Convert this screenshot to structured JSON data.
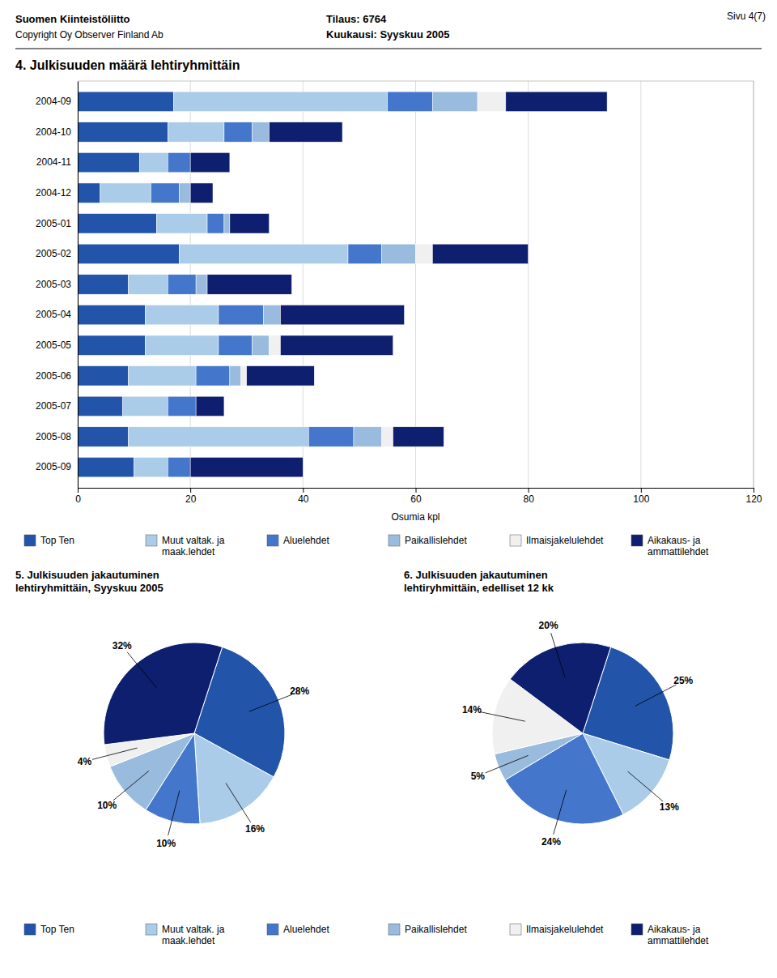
{
  "header": [
    "Suomen Kiinteistöliitto",
    "Copyright Oy Observer Finland Ab",
    "Tilaus:  6764",
    "Kuukausi: Syyskuu 2005",
    "Sivu 4(7)"
  ],
  "chart_data": [
    {
      "type": "bar",
      "orientation": "horizontal",
      "stacked": true,
      "title": "4. Julkisuuden määrä lehtiryhmittäin",
      "xlabel": "Osumia kpl",
      "categories": [
        "2004-09",
        "2004-10",
        "2004-11",
        "2004-12",
        "2005-01",
        "2005-02",
        "2005-03",
        "2005-04",
        "2005-05",
        "2005-06",
        "2005-07",
        "2005-08",
        "2005-09"
      ],
      "series": [
        {
          "name": "Top Ten",
          "color": "#2255aa",
          "values": [
            17,
            16,
            11,
            4,
            14,
            18,
            9,
            12,
            12,
            9,
            8,
            9,
            10
          ]
        },
        {
          "name": "Muut valtak. ja\nmaak.lehdet",
          "color": "#aacce8",
          "values": [
            38,
            10,
            5,
            9,
            9,
            30,
            7,
            13,
            13,
            12,
            8,
            32,
            6
          ]
        },
        {
          "name": "Aluelehdet",
          "color": "#4477cc",
          "values": [
            8,
            5,
            4,
            5,
            3,
            6,
            5,
            8,
            6,
            6,
            5,
            8,
            4
          ]
        },
        {
          "name": "Paikallislehdet",
          "color": "#99bbdd",
          "values": [
            8,
            3,
            0,
            2,
            1,
            6,
            2,
            3,
            3,
            2,
            0,
            5,
            0
          ]
        },
        {
          "name": "Ilmaisjakelulehdet",
          "color": "#f0f0f0",
          "values": [
            5,
            0,
            0,
            0,
            0,
            3,
            0,
            0,
            2,
            1,
            0,
            2,
            0
          ]
        },
        {
          "name": "Aikakaus- ja\nammattilehdet",
          "color": "#0d1f6e",
          "values": [
            18,
            13,
            7,
            4,
            7,
            17,
            15,
            22,
            20,
            12,
            5,
            9,
            20
          ]
        }
      ],
      "xlim": [
        0,
        120
      ],
      "xticks": [
        0,
        20,
        40,
        60,
        80,
        100,
        120
      ],
      "grid": true,
      "legend": "bottom"
    },
    {
      "type": "pie",
      "title": "5. Julkisuuden jakautuminen\nlehtiryhmittäin, Syyskuu 2005",
      "categories": [
        "Top Ten",
        "Muut valtak. ja\nmaak.lehdet",
        "Aluelehdet",
        "Paikallislehdet",
        "Ilmaisjakelulehdet",
        "Aikakaus- ja\nammattilehdet"
      ],
      "values": [
        28,
        16,
        10,
        10,
        4,
        32
      ],
      "value_labels": [
        "28%",
        "16%",
        "10%",
        "10%",
        "4%",
        "32%"
      ],
      "colors": [
        "#2255aa",
        "#aacce8",
        "#4477cc",
        "#99bbdd",
        "#f0f0f0",
        "#0d1f6e"
      ],
      "data_labels": true,
      "legend": "bottom"
    },
    {
      "type": "pie",
      "title": "6. Julkisuuden jakautuminen\nlehtiryhmittäin, edelliset 12 kk",
      "values": [
        25,
        13,
        24,
        5,
        14,
        20
      ],
      "value_labels": [
        "25%",
        "13%",
        "24%",
        "5%",
        "14%",
        "20%"
      ],
      "colors": [
        "#2255aa",
        "#aacce8",
        "#4477cc",
        "#99bbdd",
        "#f0f0f0",
        "#0d1f6e"
      ],
      "data_labels": true
    }
  ]
}
